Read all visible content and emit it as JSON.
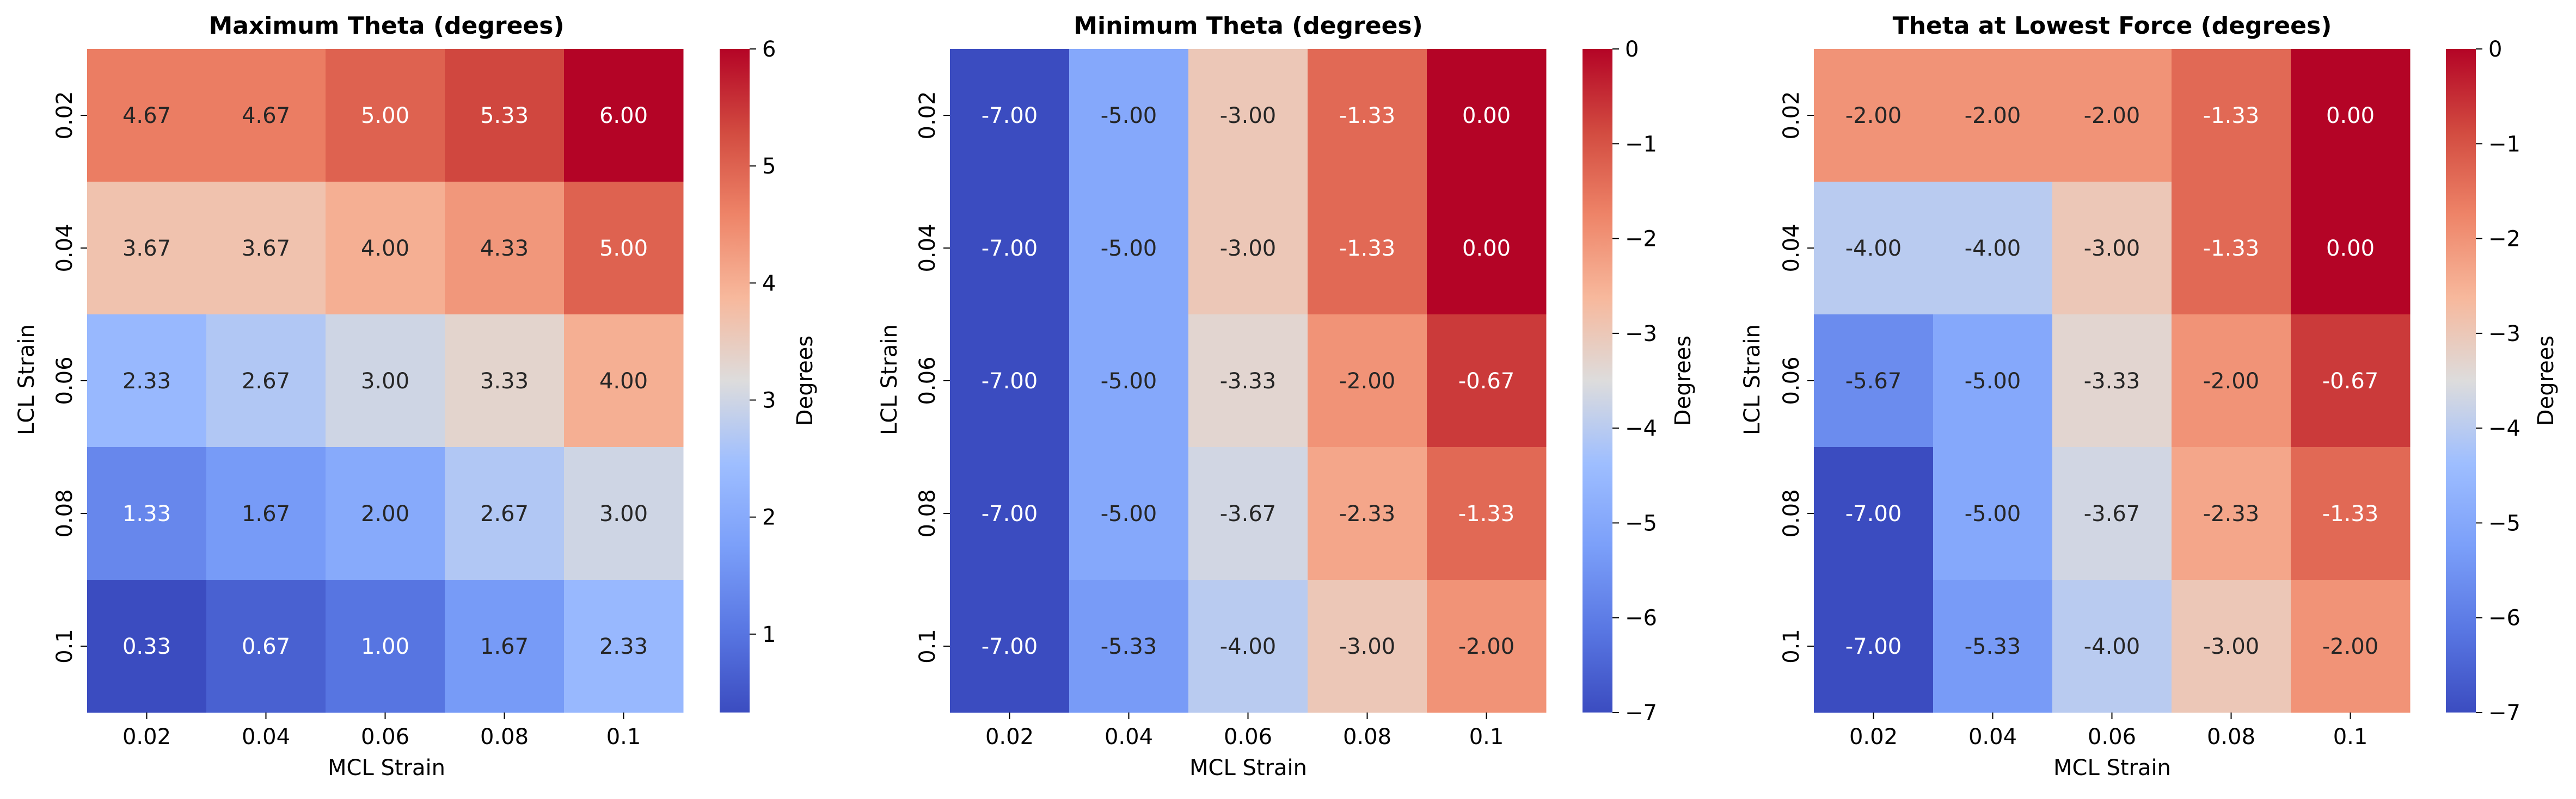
{
  "chart_data": [
    {
      "type": "heatmap",
      "title": "Maximum Theta (degrees)",
      "xlabel": "MCL Strain",
      "ylabel": "LCL Strain",
      "x_categories": [
        "0.02",
        "0.04",
        "0.06",
        "0.08",
        "0.1"
      ],
      "y_categories": [
        "0.02",
        "0.04",
        "0.06",
        "0.08",
        "0.1"
      ],
      "values": [
        [
          4.67,
          4.67,
          5.0,
          5.33,
          6.0
        ],
        [
          3.67,
          3.67,
          4.0,
          4.33,
          5.0
        ],
        [
          2.33,
          2.67,
          3.0,
          3.33,
          4.0
        ],
        [
          1.33,
          1.67,
          2.0,
          2.67,
          3.0
        ],
        [
          0.33,
          0.67,
          1.0,
          1.67,
          2.33
        ]
      ],
      "cell_labels": [
        [
          "4.67",
          "4.67",
          "5.00",
          "5.33",
          "6.00"
        ],
        [
          "3.67",
          "3.67",
          "4.00",
          "4.33",
          "5.00"
        ],
        [
          "2.33",
          "2.67",
          "3.00",
          "3.33",
          "4.00"
        ],
        [
          "1.33",
          "1.67",
          "2.00",
          "2.67",
          "3.00"
        ],
        [
          "0.33",
          "0.67",
          "1.00",
          "1.67",
          "2.33"
        ]
      ],
      "colormap": "coolwarm",
      "vmin": 0.33,
      "vmax": 6.0,
      "colorbar": {
        "label": "Degrees",
        "ticks": [
          1,
          2,
          3,
          4,
          5,
          6
        ],
        "tick_labels": [
          "1",
          "2",
          "3",
          "4",
          "5",
          "6"
        ]
      }
    },
    {
      "type": "heatmap",
      "title": "Minimum Theta (degrees)",
      "xlabel": "MCL Strain",
      "ylabel": "LCL Strain",
      "x_categories": [
        "0.02",
        "0.04",
        "0.06",
        "0.08",
        "0.1"
      ],
      "y_categories": [
        "0.02",
        "0.04",
        "0.06",
        "0.08",
        "0.1"
      ],
      "values": [
        [
          -7.0,
          -5.0,
          -3.0,
          -1.33,
          0.0
        ],
        [
          -7.0,
          -5.0,
          -3.0,
          -1.33,
          0.0
        ],
        [
          -7.0,
          -5.0,
          -3.33,
          -2.0,
          -0.67
        ],
        [
          -7.0,
          -5.0,
          -3.67,
          -2.33,
          -1.33
        ],
        [
          -7.0,
          -5.33,
          -4.0,
          -3.0,
          -2.0
        ]
      ],
      "cell_labels": [
        [
          "-7.00",
          "-5.00",
          "-3.00",
          "-1.33",
          "0.00"
        ],
        [
          "-7.00",
          "-5.00",
          "-3.00",
          "-1.33",
          "0.00"
        ],
        [
          "-7.00",
          "-5.00",
          "-3.33",
          "-2.00",
          "-0.67"
        ],
        [
          "-7.00",
          "-5.00",
          "-3.67",
          "-2.33",
          "-1.33"
        ],
        [
          "-7.00",
          "-5.33",
          "-4.00",
          "-3.00",
          "-2.00"
        ]
      ],
      "colormap": "coolwarm",
      "vmin": -7.0,
      "vmax": 0.0,
      "colorbar": {
        "label": "Degrees",
        "ticks": [
          0,
          -1,
          -2,
          -3,
          -4,
          -5,
          -6,
          -7
        ],
        "tick_labels": [
          "0",
          "−1",
          "−2",
          "−3",
          "−4",
          "−5",
          "−6",
          "−7"
        ]
      }
    },
    {
      "type": "heatmap",
      "title": "Theta at Lowest Force (degrees)",
      "xlabel": "MCL Strain",
      "ylabel": "LCL Strain",
      "x_categories": [
        "0.02",
        "0.04",
        "0.06",
        "0.08",
        "0.1"
      ],
      "y_categories": [
        "0.02",
        "0.04",
        "0.06",
        "0.08",
        "0.1"
      ],
      "values": [
        [
          -2.0,
          -2.0,
          -2.0,
          -1.33,
          0.0
        ],
        [
          -4.0,
          -4.0,
          -3.0,
          -1.33,
          0.0
        ],
        [
          -5.67,
          -5.0,
          -3.33,
          -2.0,
          -0.67
        ],
        [
          -7.0,
          -5.0,
          -3.67,
          -2.33,
          -1.33
        ],
        [
          -7.0,
          -5.33,
          -4.0,
          -3.0,
          -2.0
        ]
      ],
      "cell_labels": [
        [
          "-2.00",
          "-2.00",
          "-2.00",
          "-1.33",
          "0.00"
        ],
        [
          "-4.00",
          "-4.00",
          "-3.00",
          "-1.33",
          "0.00"
        ],
        [
          "-5.67",
          "-5.00",
          "-3.33",
          "-2.00",
          "-0.67"
        ],
        [
          "-7.00",
          "-5.00",
          "-3.67",
          "-2.33",
          "-1.33"
        ],
        [
          "-7.00",
          "-5.33",
          "-4.00",
          "-3.00",
          "-2.00"
        ]
      ],
      "colormap": "coolwarm",
      "vmin": -7.0,
      "vmax": 0.0,
      "colorbar": {
        "label": "Degrees",
        "ticks": [
          0,
          -1,
          -2,
          -3,
          -4,
          -5,
          -6,
          -7
        ],
        "tick_labels": [
          "0",
          "−1",
          "−2",
          "−3",
          "−4",
          "−5",
          "−6",
          "−7"
        ]
      }
    }
  ]
}
